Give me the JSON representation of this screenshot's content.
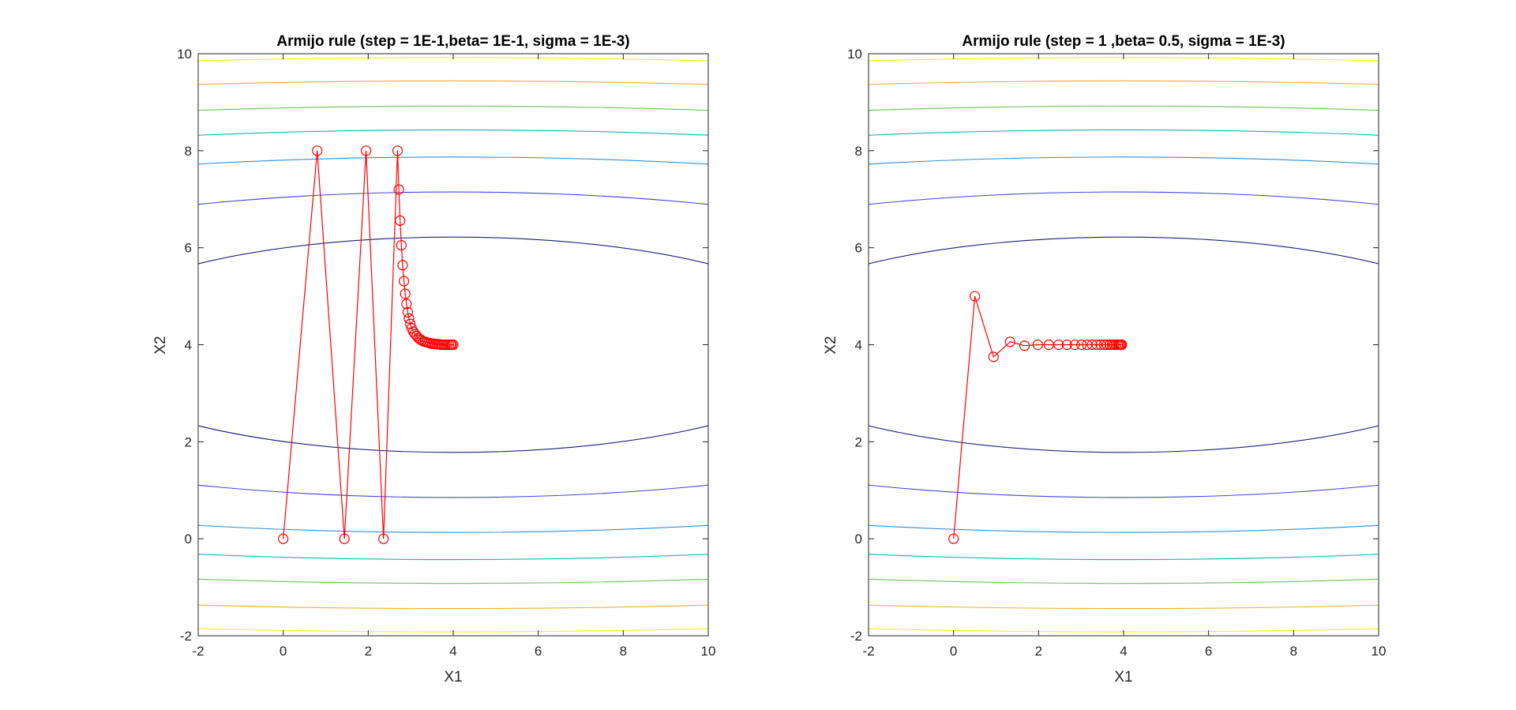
{
  "colors": {
    "path": "#ff0000",
    "axis": "#262626",
    "contours": [
      "#1f1f7a",
      "#4646d6",
      "#2e8fd6",
      "#14b4b4",
      "#6cc15a",
      "#ecae3a",
      "#f2f20e"
    ]
  },
  "chart_data": [
    {
      "type": "line",
      "subtype": "contour with optimization path",
      "title": "Armijo rule (step = 1E-1,beta= 1E-1, sigma = 1E-3)",
      "xlabel": "X1",
      "ylabel": "X2",
      "xlim": [
        -2,
        10
      ],
      "ylim": [
        -2,
        10
      ],
      "xticks": [
        "-2",
        "0",
        "2",
        "4",
        "6",
        "8",
        "10"
      ],
      "yticks": [
        "-2",
        "0",
        "2",
        "4",
        "6",
        "8",
        "10"
      ],
      "grid": false,
      "contour_center": [
        4,
        4
      ],
      "contour_levels": [
        {
          "a": 9.1,
          "b": 2.22
        },
        {
          "a": 15.2,
          "b": 3.15
        },
        {
          "a": 22.0,
          "b": 3.87
        },
        {
          "a": 27.0,
          "b": 4.43
        },
        {
          "a": 32.0,
          "b": 4.92
        },
        {
          "a": 36.5,
          "b": 5.44
        },
        {
          "a": 40.0,
          "b": 5.92
        }
      ],
      "series": [
        {
          "marker": "circle",
          "x": [
            0,
            0.8,
            1.44,
            1.95,
            2.36,
            2.69,
            2.72,
            2.75,
            2.78,
            2.81,
            2.84,
            2.87,
            2.9,
            2.93,
            2.96,
            2.99,
            3.02,
            3.06,
            3.1,
            3.14,
            3.18,
            3.22,
            3.26,
            3.3,
            3.34,
            3.38,
            3.42,
            3.46,
            3.5,
            3.54,
            3.58,
            3.62,
            3.66,
            3.7,
            3.74,
            3.78,
            3.82,
            3.86,
            3.9,
            3.94,
            3.97,
            4.0
          ],
          "y": [
            0,
            8.0,
            0,
            8.0,
            0,
            8.0,
            7.2,
            6.56,
            6.05,
            5.64,
            5.31,
            5.05,
            4.84,
            4.67,
            4.54,
            4.43,
            4.34,
            4.27,
            4.22,
            4.18,
            4.14,
            4.11,
            4.09,
            4.07,
            4.06,
            4.05,
            4.04,
            4.03,
            4.02,
            4.02,
            4.01,
            4.01,
            4.01,
            4.0,
            4.0,
            4.0,
            4.0,
            4.0,
            4.0,
            4.0,
            4.0,
            4.0
          ]
        }
      ]
    },
    {
      "type": "line",
      "subtype": "contour with optimization path",
      "title": "Armijo rule (step = 1 ,beta= 0.5, sigma = 1E-3)",
      "xlabel": "X1",
      "ylabel": "X2",
      "xlim": [
        -2,
        10
      ],
      "ylim": [
        -2,
        10
      ],
      "xticks": [
        "-2",
        "0",
        "2",
        "4",
        "6",
        "8",
        "10"
      ],
      "yticks": [
        "-2",
        "0",
        "2",
        "4",
        "6",
        "8",
        "10"
      ],
      "grid": false,
      "contour_center": [
        4,
        4
      ],
      "contour_levels": [
        {
          "a": 9.1,
          "b": 2.22
        },
        {
          "a": 15.2,
          "b": 3.15
        },
        {
          "a": 22.0,
          "b": 3.87
        },
        {
          "a": 27.0,
          "b": 4.43
        },
        {
          "a": 32.0,
          "b": 4.92
        },
        {
          "a": 36.5,
          "b": 5.44
        },
        {
          "a": 40.0,
          "b": 5.92
        }
      ],
      "series": [
        {
          "marker": "circle",
          "x": [
            0,
            0.5,
            0.94,
            1.33,
            1.67,
            1.98,
            2.24,
            2.47,
            2.67,
            2.85,
            3.01,
            3.14,
            3.26,
            3.37,
            3.46,
            3.54,
            3.61,
            3.68,
            3.73,
            3.78,
            3.82,
            3.86,
            3.89,
            3.92,
            3.94,
            3.96
          ],
          "y": [
            0,
            5.0,
            3.75,
            4.06,
            3.98,
            4.0,
            4.0,
            4.0,
            4.0,
            4.0,
            4.0,
            4.0,
            4.0,
            4.0,
            4.0,
            4.0,
            4.0,
            4.0,
            4.0,
            4.0,
            4.0,
            4.0,
            4.0,
            4.0,
            4.0,
            4.0
          ]
        }
      ]
    }
  ]
}
